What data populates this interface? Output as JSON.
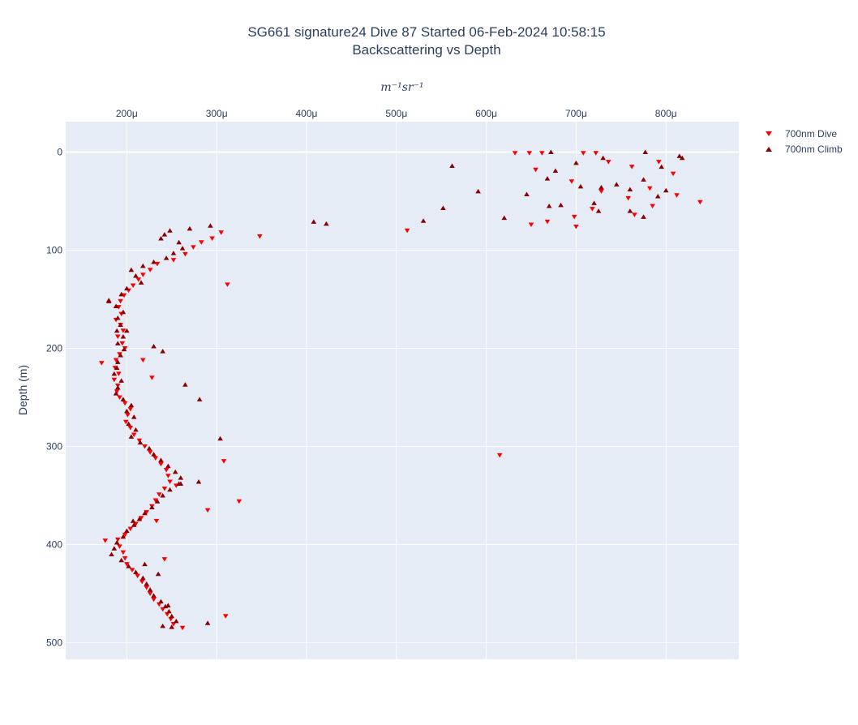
{
  "chart_data": {
    "type": "scatter",
    "title": "SG661 signature24 Dive 87 Started 06-Feb-2024 10:58:15",
    "subtitle": "Backscattering vs Depth",
    "xlabel": "m⁻¹sr⁻¹",
    "ylabel": "Depth (m)",
    "x_axis_position": "top",
    "y_reversed": true,
    "xlim": [
      0.000132,
      0.000881
    ],
    "ylim": [
      517,
      -31
    ],
    "x_ticks": [
      0.0002,
      0.0003,
      0.0004,
      0.0005,
      0.0006,
      0.0007,
      0.0008
    ],
    "x_tick_labels": [
      "200μ",
      "300μ",
      "400μ",
      "500μ",
      "600μ",
      "700μ",
      "800μ"
    ],
    "y_ticks": [
      0,
      100,
      200,
      300,
      400,
      500
    ],
    "y_tick_labels": [
      "0",
      "100",
      "200",
      "300",
      "400",
      "500"
    ],
    "grid": true,
    "legend_position": "top-right",
    "series": [
      {
        "name": "700nm Dive",
        "marker": "triangle-down",
        "color": "#ff0000",
        "points": [
          [
            0.000632,
            1
          ],
          [
            0.000648,
            1
          ],
          [
            0.000662,
            1
          ],
          [
            0.000708,
            1
          ],
          [
            0.000722,
            1
          ],
          [
            0.000736,
            10
          ],
          [
            0.000762,
            15
          ],
          [
            0.000792,
            10
          ],
          [
            0.000808,
            22
          ],
          [
            0.000655,
            18
          ],
          [
            0.000695,
            30
          ],
          [
            0.000728,
            40
          ],
          [
            0.000758,
            47
          ],
          [
            0.000782,
            37
          ],
          [
            0.000812,
            44
          ],
          [
            0.000838,
            51
          ],
          [
            0.000785,
            55
          ],
          [
            0.000765,
            64
          ],
          [
            0.000698,
            66
          ],
          [
            0.000718,
            58
          ],
          [
            0.000668,
            71
          ],
          [
            0.00065,
            74
          ],
          [
            0.0007,
            76
          ],
          [
            0.000512,
            80
          ],
          [
            0.000348,
            86
          ],
          [
            0.000305,
            82
          ],
          [
            0.000295,
            88
          ],
          [
            0.000283,
            92
          ],
          [
            0.000274,
            97
          ],
          [
            0.000265,
            104
          ],
          [
            0.000252,
            110
          ],
          [
            0.000234,
            114
          ],
          [
            0.000226,
            120
          ],
          [
            0.000218,
            125
          ],
          [
            0.000213,
            130
          ],
          [
            0.000207,
            136
          ],
          [
            0.000202,
            141
          ],
          [
            0.000197,
            146
          ],
          [
            0.000193,
            152
          ],
          [
            0.000191,
            158
          ],
          [
            0.000194,
            165
          ],
          [
            0.000188,
            171
          ],
          [
            0.000193,
            176
          ],
          [
            0.000196,
            182
          ],
          [
            0.00019,
            188
          ],
          [
            0.000195,
            195
          ],
          [
            0.000198,
            200
          ],
          [
            0.000192,
            206
          ],
          [
            0.000188,
            212
          ],
          [
            0.000172,
            215
          ],
          [
            0.000187,
            220
          ],
          [
            0.000191,
            226
          ],
          [
            0.000186,
            232
          ],
          [
            0.00019,
            238
          ],
          [
            0.000189,
            244
          ],
          [
            0.000192,
            250
          ],
          [
            0.000198,
            256
          ],
          [
            0.000204,
            262
          ],
          [
            0.000201,
            268
          ],
          [
            0.000199,
            275
          ],
          [
            0.000204,
            281
          ],
          [
            0.000208,
            288
          ],
          [
            0.000214,
            294
          ],
          [
            0.00022,
            300
          ],
          [
            0.000226,
            306
          ],
          [
            0.000232,
            312
          ],
          [
            0.000238,
            318
          ],
          [
            0.000244,
            324
          ],
          [
            0.000246,
            330
          ],
          [
            0.000248,
            336
          ],
          [
            0.000242,
            343
          ],
          [
            0.000236,
            349
          ],
          [
            0.000232,
            355
          ],
          [
            0.000228,
            361
          ],
          [
            0.000222,
            367
          ],
          [
            0.000216,
            373
          ],
          [
            0.00021,
            379
          ],
          [
            0.000204,
            384
          ],
          [
            0.000198,
            390
          ],
          [
            0.00019,
            395
          ],
          [
            0.000176,
            396
          ],
          [
            0.000192,
            402
          ],
          [
            0.000196,
            408
          ],
          [
            0.000198,
            414
          ],
          [
            0.0002,
            420
          ],
          [
            0.000206,
            426
          ],
          [
            0.000212,
            432
          ],
          [
            0.000217,
            438
          ],
          [
            0.000222,
            444
          ],
          [
            0.000226,
            450
          ],
          [
            0.00023,
            456
          ],
          [
            0.000236,
            461
          ],
          [
            0.00024,
            466
          ],
          [
            0.000245,
            471
          ],
          [
            0.000249,
            476
          ],
          [
            0.000252,
            481
          ],
          [
            0.000262,
            485
          ],
          [
            0.00031,
            473
          ],
          [
            0.000308,
            315
          ],
          [
            0.00029,
            365
          ],
          [
            0.000325,
            356
          ],
          [
            0.000312,
            135
          ],
          [
            0.000615,
            309
          ],
          [
            0.000218,
            212
          ],
          [
            0.000228,
            230
          ],
          [
            0.000242,
            415
          ],
          [
            0.000233,
            376
          ],
          [
            0.000255,
            340
          ]
        ]
      },
      {
        "name": "700nm Climb",
        "marker": "triangle-up",
        "color": "#8b0000",
        "points": [
          [
            0.000672,
            0
          ],
          [
            0.0007,
            11
          ],
          [
            0.00073,
            6
          ],
          [
            0.000777,
            0
          ],
          [
            0.000818,
            6
          ],
          [
            0.000795,
            15
          ],
          [
            0.000677,
            19
          ],
          [
            0.000562,
            14
          ],
          [
            0.000668,
            27
          ],
          [
            0.000705,
            35
          ],
          [
            0.000728,
            36
          ],
          [
            0.000745,
            33
          ],
          [
            0.00076,
            38
          ],
          [
            0.000775,
            28
          ],
          [
            0.000791,
            45
          ],
          [
            0.0008,
            39
          ],
          [
            0.000775,
            66
          ],
          [
            0.00076,
            60
          ],
          [
            0.000725,
            60
          ],
          [
            0.00072,
            52
          ],
          [
            0.000683,
            54
          ],
          [
            0.00067,
            55
          ],
          [
            0.000645,
            43
          ],
          [
            0.000591,
            40
          ],
          [
            0.000552,
            57
          ],
          [
            0.00053,
            70
          ],
          [
            0.00062,
            67
          ],
          [
            0.000422,
            73
          ],
          [
            0.000408,
            71
          ],
          [
            0.000293,
            75
          ],
          [
            0.00027,
            78
          ],
          [
            0.000248,
            80
          ],
          [
            0.000242,
            84
          ],
          [
            0.000238,
            88
          ],
          [
            0.000258,
            92
          ],
          [
            0.000262,
            98
          ],
          [
            0.000252,
            103
          ],
          [
            0.000244,
            108
          ],
          [
            0.00023,
            112
          ],
          [
            0.000218,
            116
          ],
          [
            0.000205,
            120
          ],
          [
            0.00021,
            126
          ],
          [
            0.000216,
            133
          ],
          [
            0.0002,
            139
          ],
          [
            0.000194,
            145
          ],
          [
            0.00018,
            151
          ],
          [
            0.000188,
            157
          ],
          [
            0.000196,
            163
          ],
          [
            0.00019,
            169
          ],
          [
            0.000193,
            176
          ],
          [
            0.000189,
            182
          ],
          [
            0.000196,
            188
          ],
          [
            0.00019,
            195
          ],
          [
            0.000197,
            201
          ],
          [
            0.000193,
            207
          ],
          [
            0.00019,
            214
          ],
          [
            0.000189,
            220
          ],
          [
            0.000186,
            226
          ],
          [
            0.000194,
            233
          ],
          [
            0.00019,
            240
          ],
          [
            0.000188,
            246
          ],
          [
            0.000196,
            252
          ],
          [
            0.000205,
            258
          ],
          [
            0.0002,
            264
          ],
          [
            0.000208,
            270
          ],
          [
            0.000202,
            277
          ],
          [
            0.00021,
            283
          ],
          [
            0.000205,
            290
          ],
          [
            0.000215,
            296
          ],
          [
            0.000225,
            302
          ],
          [
            0.00023,
            308
          ],
          [
            0.000238,
            314
          ],
          [
            0.000246,
            320
          ],
          [
            0.000254,
            326
          ],
          [
            0.00026,
            332
          ],
          [
            0.000258,
            338
          ],
          [
            0.000248,
            344
          ],
          [
            0.00024,
            350
          ],
          [
            0.000234,
            356
          ],
          [
            0.000228,
            362
          ],
          [
            0.00022,
            368
          ],
          [
            0.000214,
            374
          ],
          [
            0.000208,
            380
          ],
          [
            0.0002,
            386
          ],
          [
            0.000196,
            392
          ],
          [
            0.000189,
            398
          ],
          [
            0.000186,
            404
          ],
          [
            0.000183,
            410
          ],
          [
            0.000194,
            416
          ],
          [
            0.000202,
            422
          ],
          [
            0.00021,
            428
          ],
          [
            0.000218,
            434
          ],
          [
            0.000222,
            440
          ],
          [
            0.000226,
            446
          ],
          [
            0.00023,
            452
          ],
          [
            0.000238,
            458
          ],
          [
            0.000243,
            463
          ],
          [
            0.000247,
            468
          ],
          [
            0.00025,
            473
          ],
          [
            0.000255,
            478
          ],
          [
            0.00024,
            483
          ],
          [
            0.00025,
            484
          ],
          [
            0.00029,
            480
          ],
          [
            0.000304,
            292
          ],
          [
            0.000281,
            252
          ],
          [
            0.000265,
            237
          ],
          [
            0.00024,
            203
          ],
          [
            0.00023,
            198
          ],
          [
            0.000815,
            4
          ],
          [
            0.00026,
            338
          ],
          [
            0.00028,
            336
          ],
          [
            0.000235,
            430
          ],
          [
            0.000246,
            462
          ],
          [
            0.00022,
            420
          ],
          [
            0.000207,
            376
          ],
          [
            0.00018,
            152
          ],
          [
            0.0002,
            182
          ]
        ]
      }
    ]
  }
}
